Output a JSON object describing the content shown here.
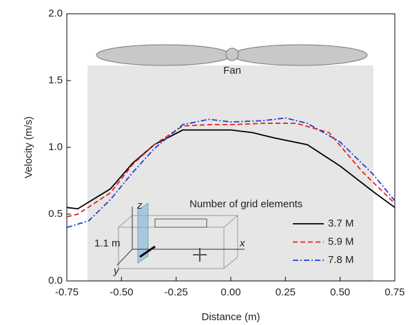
{
  "chart_data": {
    "type": "line",
    "x_label": "Distance (m)",
    "y_label": "Velocity (m/s)",
    "xlim": [
      -0.75,
      0.75
    ],
    "xticks": [
      -0.75,
      {
        "value": -0.5,
        "label": "-0.50"
      },
      -0.25,
      {
        "value": 0,
        "label": "0.00"
      },
      0.25,
      {
        "value": 0.5,
        "label": "0.50"
      },
      0.75
    ],
    "ylim": [
      0,
      2
    ],
    "yticks": [
      {
        "value": 0,
        "label": "0.0"
      },
      0.5,
      {
        "value": 1,
        "label": "1.0"
      },
      1.5,
      {
        "value": 2,
        "label": "2.0"
      }
    ],
    "legend": {
      "title": "Number of grid elements",
      "position": "lower right"
    },
    "annotations": {
      "fan": "Fan",
      "height": "1.1 m",
      "z_axis": "z",
      "x_axis": "x",
      "y_axis": "y"
    },
    "series": [
      {
        "name": "3.7 M",
        "color": "#000000",
        "dash": "solid",
        "x": [
          -0.75,
          -0.7,
          -0.55,
          -0.45,
          -0.35,
          -0.22,
          0,
          0.1,
          0.2,
          0.35,
          0.5,
          0.65,
          0.75
        ],
        "values": [
          0.55,
          0.54,
          0.69,
          0.88,
          1.02,
          1.13,
          1.13,
          1.11,
          1.07,
          1.02,
          0.86,
          0.67,
          0.55
        ]
      },
      {
        "name": "5.9 M",
        "color": "#e8201c",
        "dash": "dashed",
        "x": [
          -0.75,
          -0.7,
          -0.55,
          -0.45,
          -0.35,
          -0.22,
          -0.1,
          0,
          0.15,
          0.3,
          0.45,
          0.6,
          0.75
        ],
        "values": [
          0.48,
          0.5,
          0.66,
          0.87,
          1.02,
          1.16,
          1.17,
          1.17,
          1.18,
          1.18,
          1.11,
          0.82,
          0.58
        ]
      },
      {
        "name": "7.8 M",
        "color": "#1f3fd6",
        "dash": "dashdot",
        "x": [
          -0.75,
          -0.65,
          -0.55,
          -0.45,
          -0.35,
          -0.22,
          -0.1,
          0,
          0.15,
          0.25,
          0.35,
          0.5,
          0.65,
          0.75
        ],
        "values": [
          0.4,
          0.45,
          0.61,
          0.81,
          0.99,
          1.17,
          1.21,
          1.19,
          1.2,
          1.22,
          1.18,
          1.04,
          0.8,
          0.6
        ]
      }
    ]
  }
}
